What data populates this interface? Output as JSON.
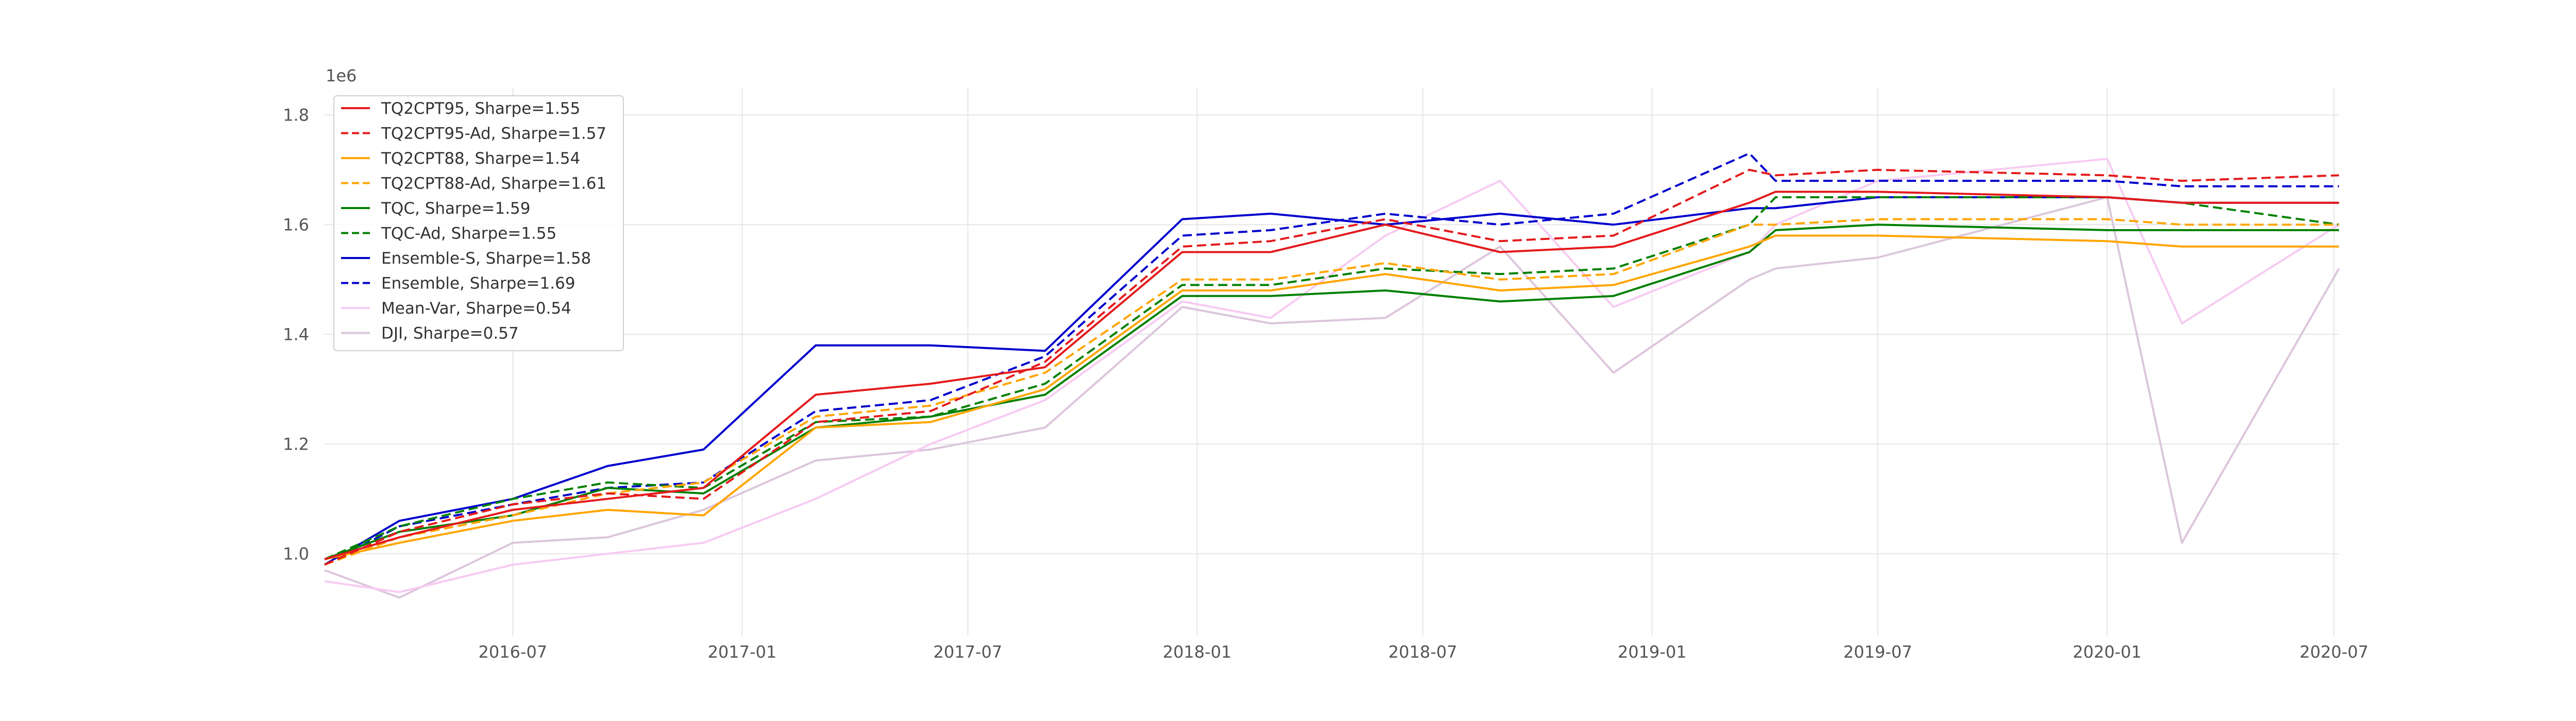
{
  "chart_data": {
    "type": "line",
    "title": "",
    "xlabel": "",
    "ylabel": "",
    "y_exponent_label": "1e6",
    "x_range": [
      "2016-02-01",
      "2020-07-05"
    ],
    "ylim": [
      0.85,
      1.85
    ],
    "grid": true,
    "legend_placement": "top-left",
    "x_ticks": [
      "2016-07",
      "2017-01",
      "2017-07",
      "2018-01",
      "2018-07",
      "2019-01",
      "2019-07",
      "2020-01",
      "2020-07"
    ],
    "y_ticks": [
      "1.0",
      "1.2",
      "1.4",
      "1.6",
      "1.8"
    ],
    "series": [
      {
        "name": "TQ2CPT95, Sharpe=1.55",
        "color": "#e41a1c",
        "dash": "solid",
        "x": [
          "2016-02-01",
          "2016-04-01",
          "2016-07-01",
          "2016-09-15",
          "2016-12-01",
          "2017-03-01",
          "2017-06-01",
          "2017-09-01",
          "2017-12-20",
          "2018-03-01",
          "2018-06-01",
          "2018-09-01",
          "2018-12-01",
          "2019-03-20",
          "2019-04-10",
          "2019-07-01",
          "2020-01-01",
          "2020-03-01",
          "2020-07-05"
        ],
        "values": [
          0.99,
          1.03,
          1.08,
          1.1,
          1.12,
          1.29,
          1.31,
          1.34,
          1.55,
          1.55,
          1.6,
          1.55,
          1.56,
          1.64,
          1.66,
          1.66,
          1.65,
          1.64,
          1.64
        ]
      },
      {
        "name": "TQ2CPT95-Ad, Sharpe=1.57",
        "color": "#e41a1c",
        "dash": "dashed",
        "x": [
          "2016-02-01",
          "2016-04-01",
          "2016-07-01",
          "2016-09-15",
          "2016-12-01",
          "2017-03-01",
          "2017-06-01",
          "2017-09-01",
          "2017-12-20",
          "2018-03-01",
          "2018-06-01",
          "2018-09-01",
          "2018-12-01",
          "2019-03-20",
          "2019-04-10",
          "2019-07-01",
          "2020-01-01",
          "2020-03-01",
          "2020-07-05"
        ],
        "values": [
          0.98,
          1.04,
          1.09,
          1.11,
          1.1,
          1.24,
          1.26,
          1.35,
          1.56,
          1.57,
          1.61,
          1.57,
          1.58,
          1.7,
          1.69,
          1.7,
          1.69,
          1.68,
          1.69
        ]
      },
      {
        "name": "TQ2CPT88, Sharpe=1.54",
        "color": "#ffa500",
        "dash": "solid",
        "x": [
          "2016-02-01",
          "2016-04-01",
          "2016-07-01",
          "2016-09-15",
          "2016-12-01",
          "2017-03-01",
          "2017-06-01",
          "2017-09-01",
          "2017-12-20",
          "2018-03-01",
          "2018-06-01",
          "2018-09-01",
          "2018-12-01",
          "2019-03-20",
          "2019-04-10",
          "2019-07-01",
          "2020-01-01",
          "2020-03-01",
          "2020-07-05"
        ],
        "values": [
          0.99,
          1.02,
          1.06,
          1.08,
          1.07,
          1.23,
          1.24,
          1.3,
          1.48,
          1.48,
          1.51,
          1.48,
          1.49,
          1.56,
          1.58,
          1.58,
          1.57,
          1.56,
          1.56
        ]
      },
      {
        "name": "TQ2CPT88-Ad, Sharpe=1.61",
        "color": "#ffa500",
        "dash": "dashed",
        "x": [
          "2016-02-01",
          "2016-04-01",
          "2016-07-01",
          "2016-09-15",
          "2016-12-01",
          "2017-03-01",
          "2017-06-01",
          "2017-09-01",
          "2017-12-20",
          "2018-03-01",
          "2018-06-01",
          "2018-09-01",
          "2018-12-01",
          "2019-03-20",
          "2019-04-10",
          "2019-07-01",
          "2020-01-01",
          "2020-03-01",
          "2020-07-05"
        ],
        "values": [
          0.98,
          1.03,
          1.07,
          1.11,
          1.13,
          1.25,
          1.27,
          1.33,
          1.5,
          1.5,
          1.53,
          1.5,
          1.51,
          1.6,
          1.6,
          1.61,
          1.61,
          1.6,
          1.6
        ]
      },
      {
        "name": "TQC, Sharpe=1.59",
        "color": "#008000",
        "dash": "solid",
        "x": [
          "2016-02-01",
          "2016-04-01",
          "2016-07-01",
          "2016-09-15",
          "2016-12-01",
          "2017-03-01",
          "2017-06-01",
          "2017-09-01",
          "2017-12-20",
          "2018-03-01",
          "2018-06-01",
          "2018-09-01",
          "2018-12-01",
          "2019-03-20",
          "2019-04-10",
          "2019-07-01",
          "2020-01-01",
          "2020-03-01",
          "2020-07-05"
        ],
        "values": [
          0.99,
          1.04,
          1.07,
          1.12,
          1.11,
          1.23,
          1.25,
          1.29,
          1.47,
          1.47,
          1.48,
          1.46,
          1.47,
          1.55,
          1.59,
          1.6,
          1.59,
          1.59,
          1.59
        ]
      },
      {
        "name": "TQC-Ad, Sharpe=1.55",
        "color": "#008000",
        "dash": "dashed",
        "x": [
          "2016-02-01",
          "2016-04-01",
          "2016-07-01",
          "2016-09-15",
          "2016-12-01",
          "2017-03-01",
          "2017-06-01",
          "2017-09-01",
          "2017-12-20",
          "2018-03-01",
          "2018-06-01",
          "2018-09-01",
          "2018-12-01",
          "2019-03-20",
          "2019-04-10",
          "2019-07-01",
          "2020-01-01",
          "2020-03-01",
          "2020-07-05"
        ],
        "values": [
          0.99,
          1.05,
          1.1,
          1.13,
          1.12,
          1.24,
          1.25,
          1.31,
          1.49,
          1.49,
          1.52,
          1.51,
          1.52,
          1.6,
          1.65,
          1.65,
          1.65,
          1.64,
          1.6
        ]
      },
      {
        "name": "Ensemble-S, Sharpe=1.58",
        "color": "#0000cd",
        "dash": "solid",
        "x": [
          "2016-02-01",
          "2016-04-01",
          "2016-07-01",
          "2016-09-15",
          "2016-12-01",
          "2017-03-01",
          "2017-06-01",
          "2017-09-01",
          "2017-12-20",
          "2018-03-01",
          "2018-06-01",
          "2018-09-01",
          "2018-12-01",
          "2019-03-20",
          "2019-04-10",
          "2019-07-01",
          "2020-01-01",
          "2020-03-01",
          "2020-07-05"
        ],
        "values": [
          0.98,
          1.06,
          1.1,
          1.16,
          1.19,
          1.38,
          1.38,
          1.37,
          1.61,
          1.62,
          1.6,
          1.62,
          1.6,
          1.63,
          1.63,
          1.65,
          1.65,
          1.64,
          1.64
        ]
      },
      {
        "name": "Ensemble, Sharpe=1.69",
        "color": "#0000cd",
        "dash": "dashed",
        "x": [
          "2016-02-01",
          "2016-04-01",
          "2016-07-01",
          "2016-09-15",
          "2016-12-01",
          "2017-03-01",
          "2017-06-01",
          "2017-09-01",
          "2017-12-20",
          "2018-03-01",
          "2018-06-01",
          "2018-09-01",
          "2018-12-01",
          "2019-03-20",
          "2019-04-10",
          "2019-07-01",
          "2020-01-01",
          "2020-03-01",
          "2020-07-05"
        ],
        "values": [
          0.98,
          1.05,
          1.09,
          1.12,
          1.13,
          1.26,
          1.28,
          1.36,
          1.58,
          1.59,
          1.62,
          1.6,
          1.62,
          1.73,
          1.68,
          1.68,
          1.68,
          1.67,
          1.67
        ]
      },
      {
        "name": "Mean-Var, Sharpe=0.54",
        "color": "#f7cbf2",
        "dash": "solid",
        "x": [
          "2016-02-01",
          "2016-04-01",
          "2016-07-01",
          "2016-09-15",
          "2016-12-01",
          "2017-03-01",
          "2017-06-01",
          "2017-09-01",
          "2017-12-20",
          "2018-03-01",
          "2018-06-01",
          "2018-09-01",
          "2018-12-01",
          "2019-03-20",
          "2019-04-10",
          "2019-07-01",
          "2020-01-01",
          "2020-03-01",
          "2020-07-05"
        ],
        "values": [
          0.95,
          0.93,
          0.98,
          1.0,
          1.02,
          1.1,
          1.2,
          1.28,
          1.46,
          1.43,
          1.58,
          1.68,
          1.45,
          1.55,
          1.6,
          1.68,
          1.72,
          1.42,
          1.6
        ]
      },
      {
        "name": "DJI, Sharpe=0.57",
        "color": "#dcc6dc",
        "dash": "solid",
        "x": [
          "2016-02-01",
          "2016-04-01",
          "2016-07-01",
          "2016-09-15",
          "2016-12-01",
          "2017-03-01",
          "2017-06-01",
          "2017-09-01",
          "2017-12-20",
          "2018-03-01",
          "2018-06-01",
          "2018-09-01",
          "2018-12-01",
          "2019-03-20",
          "2019-04-10",
          "2019-07-01",
          "2020-01-01",
          "2020-03-01",
          "2020-07-05"
        ],
        "values": [
          0.97,
          0.92,
          1.02,
          1.03,
          1.08,
          1.17,
          1.19,
          1.23,
          1.45,
          1.42,
          1.43,
          1.56,
          1.33,
          1.5,
          1.52,
          1.54,
          1.65,
          1.02,
          1.52
        ]
      }
    ]
  }
}
